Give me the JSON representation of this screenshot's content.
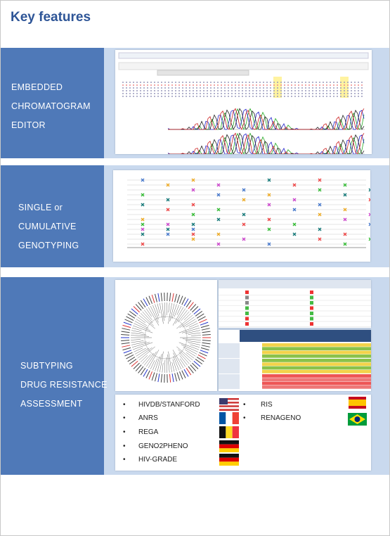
{
  "header": {
    "title": "Key features"
  },
  "sections": [
    {
      "lines": [
        "EMBEDDED",
        "CHROMATOGRAM",
        "EDITOR"
      ]
    },
    {
      "lines": [
        "SINGLE or",
        "CUMULATIVE",
        "GENOTYPING"
      ]
    },
    {
      "lines": [
        "SUBTYPING",
        "DRUG RESISTANCE",
        "ASSESSMENT"
      ]
    }
  ],
  "algorithms": {
    "left": [
      "HIVDB/STANFORD",
      "ANRS",
      "REGA",
      "GENO2PHENO",
      "HIV-GRADE"
    ],
    "right": [
      "RIS",
      "RENAGENO"
    ]
  }
}
